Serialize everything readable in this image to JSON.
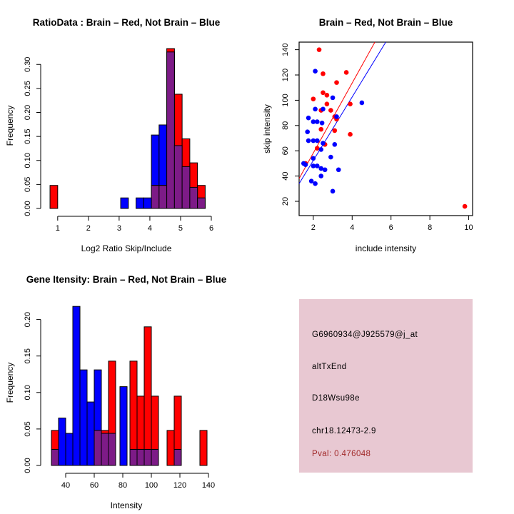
{
  "colors": {
    "red": "#FF0000",
    "blue": "#0000FF",
    "overlap": "#7D1B87",
    "axis": "#000000",
    "background": "#FFFFFF"
  },
  "chart_data": [
    {
      "id": "ratio_hist",
      "type": "bar",
      "subtype": "overlaid-histogram",
      "title": "RatioData : Brain – Red, Not Brain – Blue",
      "xlabel": "Log2 Ratio Skip/Include",
      "ylabel": "Frequency",
      "xlim": [
        0.47,
        6.0
      ],
      "ylim": [
        0,
        0.345
      ],
      "x_ticks": [
        1,
        2,
        3,
        4,
        5,
        6
      ],
      "x_tick_labels": [
        "1",
        "2",
        "3",
        "4",
        "5",
        "6"
      ],
      "y_ticks": [
        0,
        0.05,
        0.1,
        0.15,
        0.2,
        0.25,
        0.3
      ],
      "y_tick_labels": [
        "0.00",
        "0.05",
        "0.10",
        "0.15",
        "0.20",
        "0.25",
        "0.30"
      ],
      "grid": false,
      "legend": "none",
      "series": [
        {
          "name": "not-brain",
          "color_key": "blue",
          "bars": [
            [
              3.05,
              3.3,
              0.022
            ],
            [
              3.55,
              3.8,
              0.022
            ],
            [
              3.8,
              4.05,
              0.022
            ],
            [
              4.05,
              4.3,
              0.153
            ],
            [
              4.3,
              4.55,
              0.174
            ],
            [
              4.55,
              4.8,
              0.326
            ],
            [
              4.8,
              5.05,
              0.131
            ],
            [
              5.05,
              5.3,
              0.087
            ],
            [
              5.3,
              5.55,
              0.044
            ],
            [
              5.55,
              5.8,
              0.022
            ]
          ]
        },
        {
          "name": "brain",
          "color_key": "red",
          "bars": [
            [
              0.75,
              1.0,
              0.048
            ],
            [
              4.05,
              4.3,
              0.048
            ],
            [
              4.3,
              4.55,
              0.048
            ],
            [
              4.55,
              4.8,
              0.333
            ],
            [
              4.8,
              5.05,
              0.238
            ],
            [
              5.05,
              5.3,
              0.145
            ],
            [
              5.3,
              5.55,
              0.095
            ],
            [
              5.55,
              5.8,
              0.048
            ]
          ]
        },
        {
          "name": "overlap",
          "color_key": "overlap",
          "bars": [
            [
              4.05,
              4.3,
              0.048
            ],
            [
              4.3,
              4.55,
              0.048
            ],
            [
              4.55,
              4.8,
              0.326
            ],
            [
              4.8,
              5.05,
              0.131
            ],
            [
              5.05,
              5.3,
              0.087
            ],
            [
              5.3,
              5.55,
              0.044
            ],
            [
              5.55,
              5.8,
              0.022
            ]
          ]
        }
      ]
    },
    {
      "id": "intensity_scatter",
      "type": "scatter",
      "title": "Brain – Red, Not Brain – Blue",
      "xlabel": "include intensity",
      "ylabel": "skip intensity",
      "xlim": [
        1.27,
        10.2
      ],
      "ylim": [
        8.7,
        146
      ],
      "x_ticks": [
        2,
        4,
        6,
        8,
        10
      ],
      "x_tick_labels": [
        "2",
        "4",
        "6",
        "8",
        "10"
      ],
      "y_ticks": [
        20,
        40,
        60,
        80,
        100,
        120,
        140
      ],
      "y_tick_labels": [
        "20",
        "40",
        "60",
        "80",
        "100",
        "120",
        "140"
      ],
      "grid": false,
      "legend": "none",
      "series": [
        {
          "name": "brain",
          "color_key": "red",
          "points": [
            [
              2.3,
              140
            ],
            [
              2.5,
              121
            ],
            [
              3.7,
              122
            ],
            [
              3.2,
              114
            ],
            [
              2.5,
              106
            ],
            [
              2.7,
              104
            ],
            [
              2.0,
              101
            ],
            [
              2.7,
              97
            ],
            [
              3.9,
              97
            ],
            [
              2.4,
              92
            ],
            [
              2.9,
              92
            ],
            [
              3.1,
              87
            ],
            [
              3.2,
              85
            ],
            [
              2.4,
              77
            ],
            [
              3.1,
              76
            ],
            [
              3.9,
              73
            ],
            [
              2.6,
              65
            ],
            [
              2.2,
              62
            ],
            [
              1.6,
              50
            ],
            [
              9.8,
              16
            ]
          ]
        },
        {
          "name": "not-brain",
          "color_key": "blue",
          "points": [
            [
              2.1,
              123
            ],
            [
              3.0,
              102
            ],
            [
              4.5,
              98
            ],
            [
              2.1,
              93
            ],
            [
              2.5,
              93
            ],
            [
              3.2,
              87
            ],
            [
              1.75,
              86
            ],
            [
              2.0,
              83
            ],
            [
              2.2,
              83
            ],
            [
              2.45,
              82
            ],
            [
              1.7,
              75
            ],
            [
              1.75,
              68
            ],
            [
              2.0,
              68
            ],
            [
              2.2,
              68
            ],
            [
              2.5,
              66
            ],
            [
              3.1,
              65
            ],
            [
              2.4,
              61
            ],
            [
              2.9,
              55
            ],
            [
              2.0,
              54
            ],
            [
              1.5,
              50
            ],
            [
              1.6,
              49
            ],
            [
              2.0,
              48
            ],
            [
              2.2,
              48
            ],
            [
              2.4,
              46
            ],
            [
              2.6,
              45
            ],
            [
              3.3,
              45
            ],
            [
              2.4,
              40
            ],
            [
              1.9,
              36
            ],
            [
              2.1,
              34
            ],
            [
              3.0,
              28
            ]
          ]
        }
      ],
      "fit_lines": [
        {
          "name": "brain-fit",
          "color_key": "red",
          "x1": 1.27,
          "y1": 38,
          "x2": 5.17,
          "y2": 146
        },
        {
          "name": "not-brain-fit",
          "color_key": "blue",
          "x1": 1.27,
          "y1": 34,
          "x2": 5.73,
          "y2": 146
        }
      ]
    },
    {
      "id": "gene_hist",
      "type": "bar",
      "subtype": "overlaid-histogram",
      "title": "Gene Itensity: Brain – Red, Not Brain – Blue",
      "xlabel": "Intensity",
      "ylabel": "Frequency",
      "xlim": [
        23,
        142
      ],
      "ylim": [
        0,
        0.227
      ],
      "x_ticks": [
        40,
        60,
        80,
        100,
        120,
        140
      ],
      "x_tick_labels": [
        "40",
        "60",
        "80",
        "100",
        "120",
        "140"
      ],
      "y_ticks": [
        0,
        0.05,
        0.1,
        0.15,
        0.2
      ],
      "y_tick_labels": [
        "0.00",
        "0.05",
        "0.10",
        "0.15",
        "0.20"
      ],
      "grid": false,
      "legend": "none",
      "series": [
        {
          "name": "not-brain",
          "color_key": "blue",
          "bars": [
            [
              30,
              35,
              0.022
            ],
            [
              35,
              40,
              0.065
            ],
            [
              40,
              45,
              0.044
            ],
            [
              45,
              50,
              0.218
            ],
            [
              50,
              55,
              0.131
            ],
            [
              55,
              60,
              0.087
            ],
            [
              60,
              65,
              0.131
            ],
            [
              65,
              70,
              0.044
            ],
            [
              70,
              75,
              0.044
            ],
            [
              78,
              83,
              0.108
            ],
            [
              85,
              90,
              0.022
            ],
            [
              90,
              95,
              0.022
            ],
            [
              95,
              100,
              0.022
            ],
            [
              100,
              105,
              0.022
            ],
            [
              116,
              121,
              0.022
            ]
          ]
        },
        {
          "name": "brain",
          "color_key": "red",
          "bars": [
            [
              30,
              35,
              0.048
            ],
            [
              60,
              65,
              0.048
            ],
            [
              65,
              70,
              0.048
            ],
            [
              70,
              75,
              0.143
            ],
            [
              85,
              90,
              0.143
            ],
            [
              90,
              95,
              0.095
            ],
            [
              95,
              100,
              0.19
            ],
            [
              100,
              105,
              0.095
            ],
            [
              111,
              116,
              0.048
            ],
            [
              116,
              121,
              0.095
            ],
            [
              134,
              139,
              0.048
            ]
          ]
        },
        {
          "name": "overlap",
          "color_key": "overlap",
          "bars": [
            [
              30,
              35,
              0.022
            ],
            [
              60,
              65,
              0.048
            ],
            [
              65,
              70,
              0.044
            ],
            [
              70,
              75,
              0.044
            ],
            [
              85,
              90,
              0.022
            ],
            [
              90,
              95,
              0.022
            ],
            [
              95,
              100,
              0.022
            ],
            [
              100,
              105,
              0.022
            ],
            [
              116,
              121,
              0.022
            ]
          ]
        }
      ]
    }
  ],
  "info_panel": {
    "probe_id": "G6960934@J925579@j_at",
    "event_type": "altTxEnd",
    "gene": "D18Wsu98e",
    "locus": "chr18.12473-2.9",
    "pval_label": "Pval: 0.476048",
    "bg_color": "#E8C8D2",
    "text_color": "#000000",
    "pval_color": "#A02828"
  }
}
